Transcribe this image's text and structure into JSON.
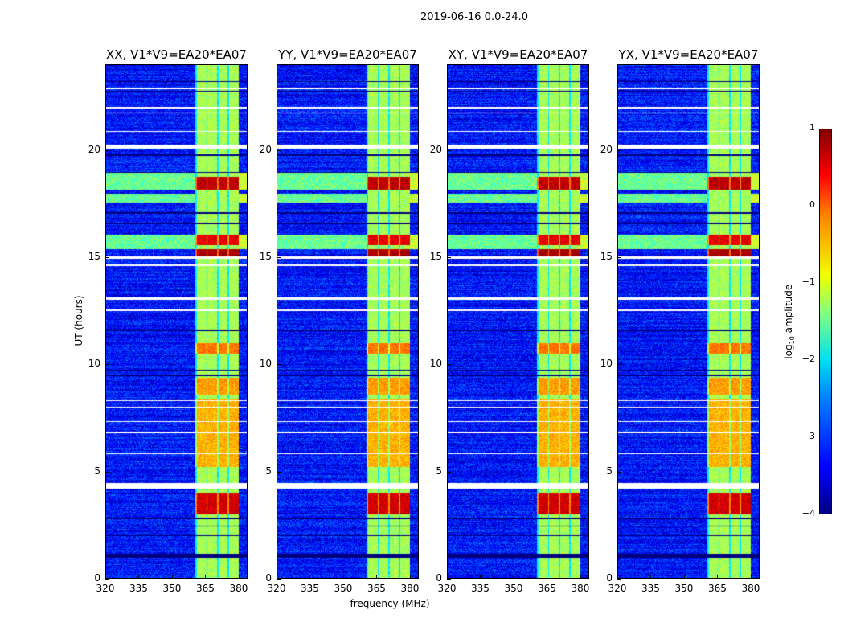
{
  "suptitle": "2019-06-16 0.0-24.0",
  "xlabel": "frequency (MHz)",
  "ylabel": "UT (hours)",
  "colorbar": {
    "label_prefix": "log",
    "label_sub": "10",
    "label_suffix": " amplitude",
    "ticks": [
      "1",
      "0",
      "−1",
      "−2",
      "−3",
      "−4"
    ],
    "range": [
      -4,
      1
    ]
  },
  "chart_data": {
    "type": "heatmap",
    "title": "2019-06-16 0.0-24.0",
    "xlabel": "frequency (MHz)",
    "ylabel": "UT (hours)",
    "xlim": [
      320,
      384
    ],
    "ylim": [
      0,
      24
    ],
    "xticks": [
      "320",
      "335",
      "350",
      "365",
      "380"
    ],
    "yticks": [
      "0",
      "5",
      "10",
      "15",
      "20"
    ],
    "panels": [
      {
        "title": "XX, V1*V9=EA20*EA07"
      },
      {
        "title": "YY, V1*V9=EA20*EA07"
      },
      {
        "title": "XY, V1*V9=EA20*EA07"
      },
      {
        "title": "YX, V1*V9=EA20*EA07"
      }
    ],
    "colormap": "jet",
    "background_log_amplitude": -3.3,
    "rfi_band_mhz": [
      360.5,
      380
    ],
    "rfi_band_log_amplitude": -1.3,
    "hot_intervals_hours": [
      [
        18.2,
        18.8,
        0.7
      ],
      [
        15.0,
        15.4,
        0.8
      ],
      [
        15.6,
        16.1,
        0.5
      ],
      [
        10.5,
        11.0,
        -0.2
      ],
      [
        8.6,
        9.4,
        -0.4
      ],
      [
        5.2,
        8.4,
        -0.5
      ],
      [
        3.0,
        4.0,
        0.6
      ]
    ],
    "broadband_intervals_hours": [
      [
        18.2,
        19.0
      ],
      [
        17.6,
        18.0
      ],
      [
        15.4,
        16.1
      ]
    ],
    "flagged_hours": [
      [
        20.1,
        20.3
      ],
      [
        14.95,
        15.05
      ],
      [
        14.6,
        14.7
      ],
      [
        13.05,
        13.15
      ],
      [
        12.5,
        12.6
      ],
      [
        4.2,
        4.45
      ],
      [
        20.9,
        20.95
      ],
      [
        22.0,
        22.05
      ],
      [
        21.75,
        21.8
      ],
      [
        22.9,
        22.95
      ],
      [
        8.3,
        8.35
      ],
      [
        8.0,
        8.05
      ],
      [
        7.3,
        7.35
      ],
      [
        6.8,
        6.85
      ],
      [
        5.8,
        5.85
      ]
    ],
    "dark_lines_hours": [
      23.25,
      22.8,
      19.8,
      19.0,
      17.1,
      16.6,
      11.6,
      9.75,
      9.5,
      2.8,
      2.45,
      1.1,
      1.05,
      1.0,
      2.0
    ]
  }
}
